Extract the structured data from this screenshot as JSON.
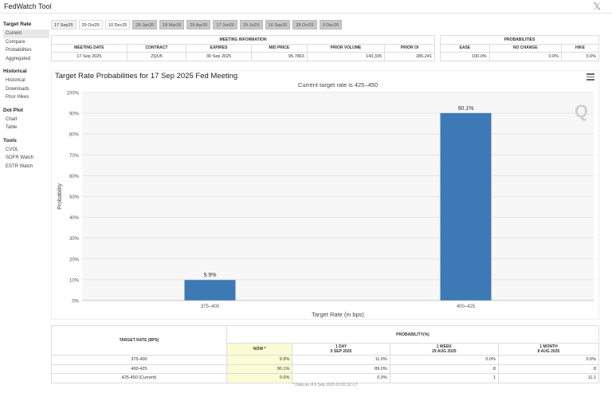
{
  "app": {
    "title": "FedWatch Tool",
    "close_glyph": "𝕏"
  },
  "sidebar": {
    "sections": [
      {
        "heading": "Target Rate",
        "items": [
          "Current",
          "Compare",
          "Probabilities",
          "Aggregated"
        ]
      },
      {
        "heading": "Historical",
        "items": [
          "Historical",
          "Downloads",
          "Prior Hikes"
        ]
      },
      {
        "heading": "Dot Plot",
        "items": [
          "Chart",
          "Table"
        ]
      },
      {
        "heading": "Tools",
        "items": [
          "CVOL",
          "SOFR Watch",
          "ESTR Watch"
        ]
      }
    ],
    "active_item": "Current"
  },
  "tabs": [
    "17 Sep25",
    "29 Oct25",
    "10 Dec25",
    "28 Jan26",
    "18 Mar26",
    "29 Apr26",
    "17 Jun26",
    "29 Jul26",
    "16 Sep26",
    "28 Oct26",
    "9 Dec26"
  ],
  "meeting_info": {
    "header": "MEETING INFORMATION",
    "columns": [
      "MEETING DATE",
      "CONTRACT",
      "EXPIRES",
      "MID PRICE",
      "PRIOR VOLUME",
      "PRIOR OI"
    ],
    "row": [
      "17 Sep 2025",
      "ZQU5",
      "30 Sep 2025",
      "95.7863",
      "143,335",
      "286,241"
    ]
  },
  "probabilities_summary": {
    "header": "PROBABILITIES",
    "columns": [
      "EASE",
      "NO CHANGE",
      "HIKE"
    ],
    "row": [
      "100.0%",
      "0.0%",
      "0.0%"
    ]
  },
  "chart": {
    "title": "Target Rate Probabilities for 17 Sep 2025 Fed Meeting",
    "subtitle": "Current target rate is 425–450",
    "watermark": "Q"
  },
  "chart_data": {
    "type": "bar",
    "categories": [
      "375–400",
      "400–425"
    ],
    "values": [
      9.9,
      90.1
    ],
    "data_labels": [
      "9.9%",
      "90.1%"
    ],
    "xlabel": "Target Rate (in bps)",
    "ylabel": "Probability",
    "ylim": [
      0,
      100
    ],
    "yticks": [
      "0%",
      "10%",
      "20%",
      "30%",
      "40%",
      "50%",
      "60%",
      "70%",
      "80%",
      "90%",
      "100%"
    ],
    "grid": true,
    "bar_color": "#3d7ab5"
  },
  "prob_table": {
    "target_header": "TARGET RATE (BPS)",
    "prob_header": "PROBABILITY(%)",
    "sub_headers": [
      {
        "line1": "NOW *",
        "line2": ""
      },
      {
        "line1": "1 DAY",
        "line2": "5 SEP 2025"
      },
      {
        "line1": "1 WEEK",
        "line2": "29 AUG 2025"
      },
      {
        "line1": "1 MONTH",
        "line2": "8 AUG 2025"
      }
    ],
    "rows": [
      [
        "375-400",
        "9.9%",
        "11.0%",
        "0.0%",
        "0.0%"
      ],
      [
        "400-425",
        "90.1%",
        "89.0%",
        "8",
        "8"
      ],
      [
        "425-450 (Current)",
        "0.0%",
        "0.0%",
        "1",
        "11.1"
      ]
    ],
    "footnote": "* Data as of 6 Sep 2025 03:05:32 CT"
  }
}
